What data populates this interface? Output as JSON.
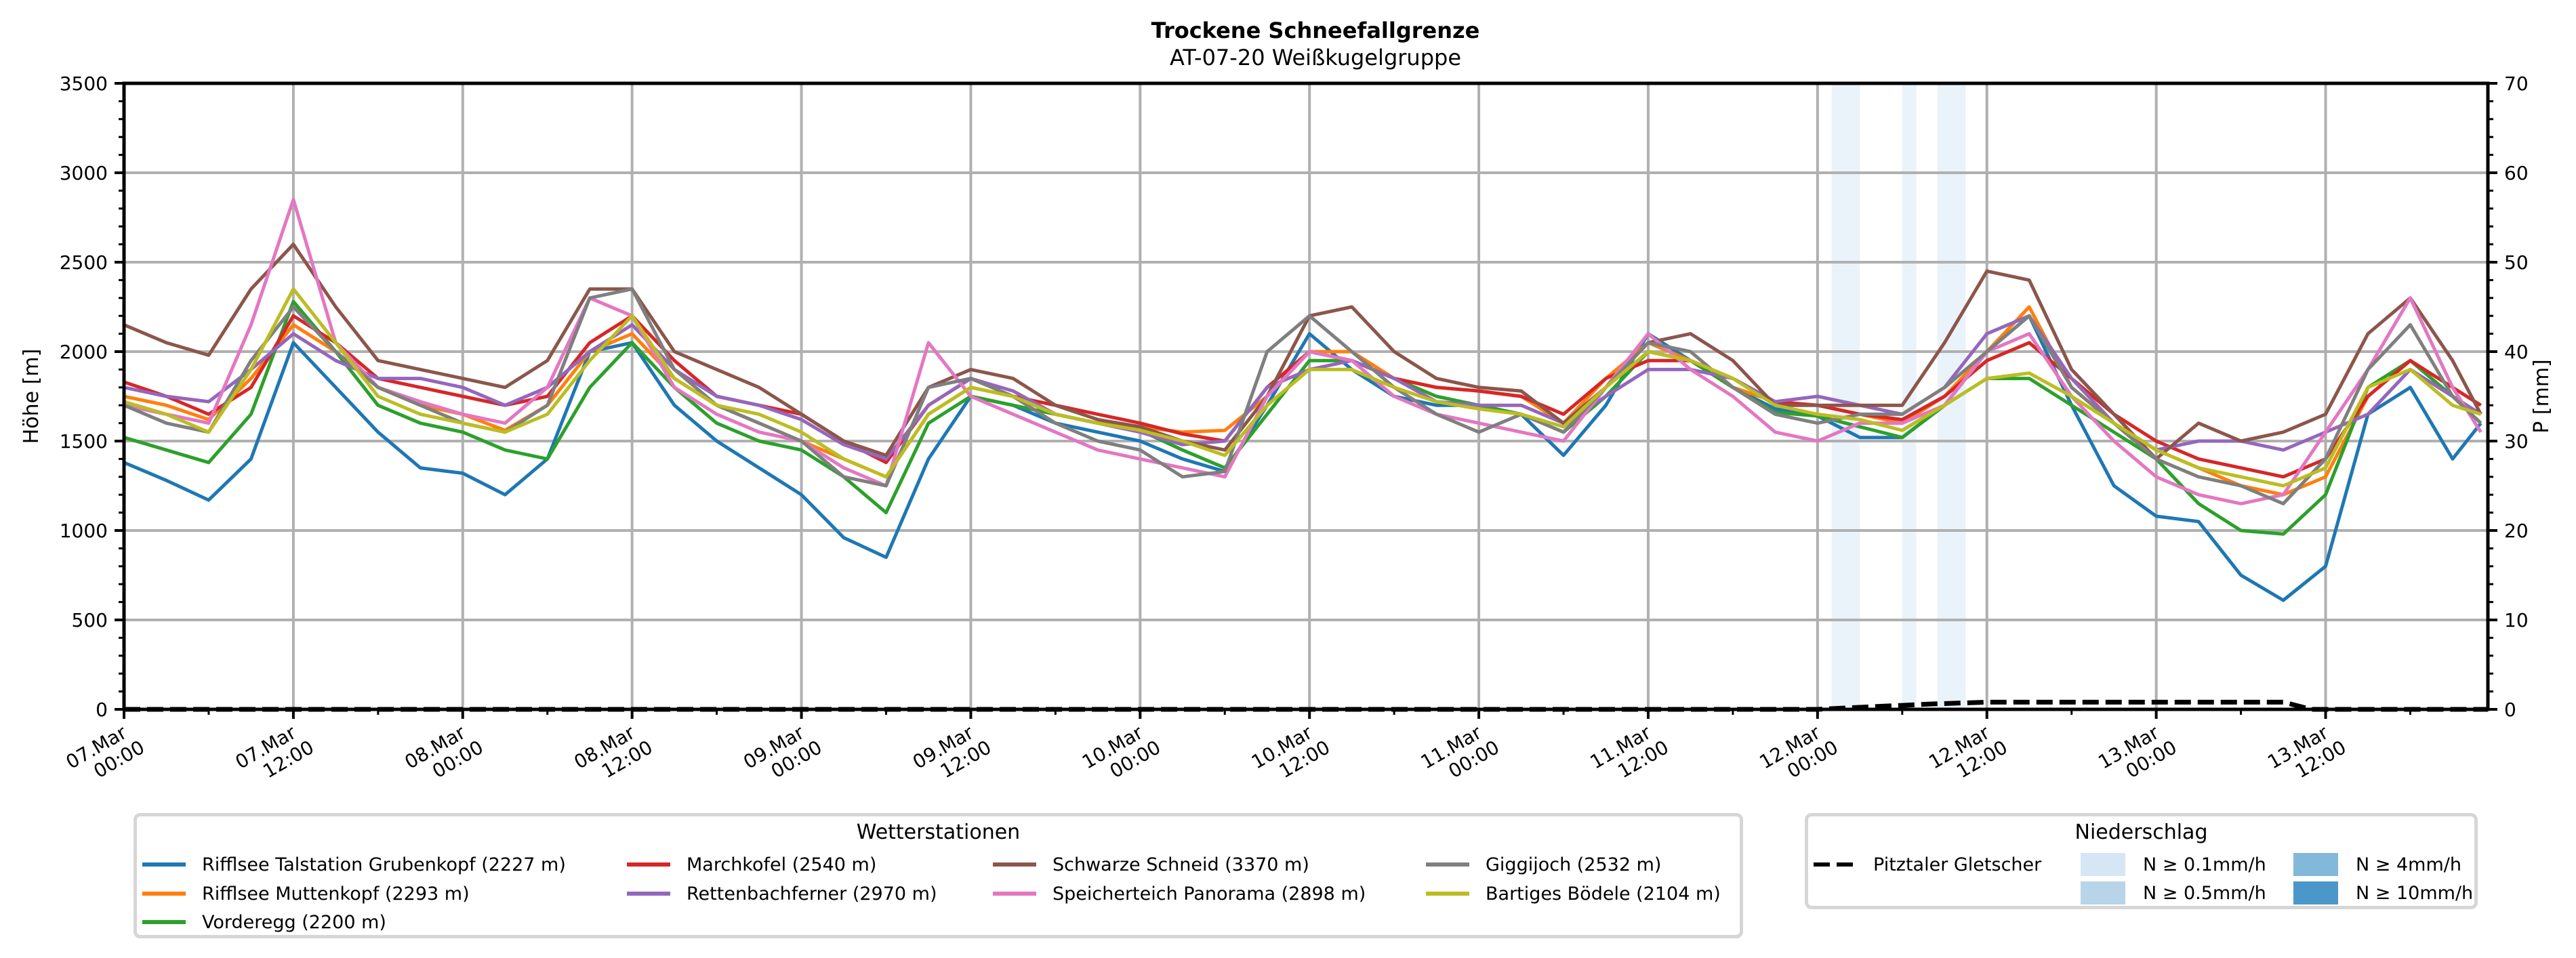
{
  "chart_data": {
    "type": "line",
    "title": "Trockene Schneefallgrenze",
    "subtitle": "AT-07-20 Weißkugelgruppe",
    "ylabel": "Höhe [m]",
    "ylabel_right": "P [mm]",
    "ylim": [
      0,
      3500
    ],
    "ylim_right": [
      0,
      70
    ],
    "yticks": [
      "0",
      "500",
      "1000",
      "1500",
      "2000",
      "2500",
      "3000",
      "3500"
    ],
    "yticks_right": [
      "0",
      "10",
      "20",
      "30",
      "40",
      "50",
      "60",
      "70"
    ],
    "x_unit": "hours since 07.Mar 00:00",
    "xlim": [
      0,
      167.5
    ],
    "xticks": [
      {
        "h": 0,
        "l1": "07.Mar",
        "l2": "00:00"
      },
      {
        "h": 12,
        "l1": "07.Mar",
        "l2": "12:00"
      },
      {
        "h": 24,
        "l1": "08.Mar",
        "l2": "00:00"
      },
      {
        "h": 36,
        "l1": "08.Mar",
        "l2": "12:00"
      },
      {
        "h": 48,
        "l1": "09.Mar",
        "l2": "00:00"
      },
      {
        "h": 60,
        "l1": "09.Mar",
        "l2": "12:00"
      },
      {
        "h": 72,
        "l1": "10.Mar",
        "l2": "00:00"
      },
      {
        "h": 84,
        "l1": "10.Mar",
        "l2": "12:00"
      },
      {
        "h": 96,
        "l1": "11.Mar",
        "l2": "00:00"
      },
      {
        "h": 108,
        "l1": "11.Mar",
        "l2": "12:00"
      },
      {
        "h": 120,
        "l1": "12.Mar",
        "l2": "00:00"
      },
      {
        "h": 132,
        "l1": "12.Mar",
        "l2": "12:00"
      },
      {
        "h": 144,
        "l1": "13.Mar",
        "l2": "00:00"
      },
      {
        "h": 156,
        "l1": "13.Mar",
        "l2": "12:00"
      }
    ],
    "grid": true,
    "x": [
      0,
      3,
      6,
      9,
      12,
      15,
      18,
      21,
      24,
      27,
      30,
      33,
      36,
      39,
      42,
      45,
      48,
      51,
      54,
      57,
      60,
      63,
      66,
      69,
      72,
      75,
      78,
      81,
      84,
      87,
      90,
      93,
      96,
      99,
      102,
      105,
      108,
      111,
      114,
      117,
      120,
      123,
      126,
      129,
      132,
      135,
      138,
      141,
      144,
      147,
      150,
      153,
      156,
      159,
      162,
      165,
      167
    ],
    "legend_title": "Wetterstationen",
    "series": [
      {
        "name": "Rifflsee Talstation Grubenkopf (2227 m)",
        "color": "#1f77b4",
        "values": [
          1380,
          1280,
          1170,
          1400,
          2050,
          1800,
          1550,
          1350,
          1320,
          1200,
          1400,
          2000,
          2050,
          1700,
          1500,
          1350,
          1200,
          960,
          850,
          1400,
          1750,
          1700,
          1600,
          1550,
          1500,
          1400,
          1330,
          1700,
          2100,
          1900,
          1750,
          1700,
          1700,
          1650,
          1420,
          1700,
          2100,
          1950,
          1800,
          1680,
          1640,
          1520,
          1520,
          1700,
          2000,
          2200,
          1700,
          1250,
          1080,
          1050,
          750,
          610,
          800,
          1650,
          1800,
          1400,
          1600
        ]
      },
      {
        "name": "Rifflsee Muttenkopf (2293 m)",
        "color": "#ff7f0e",
        "values": [
          1750,
          1700,
          1620,
          1850,
          2150,
          2000,
          1800,
          1700,
          1650,
          1560,
          1700,
          2000,
          2100,
          1850,
          1700,
          1600,
          1500,
          1400,
          1300,
          1650,
          1800,
          1750,
          1650,
          1600,
          1580,
          1550,
          1560,
          1750,
          2000,
          2000,
          1850,
          1800,
          1780,
          1750,
          1600,
          1850,
          2050,
          1950,
          1800,
          1720,
          1700,
          1650,
          1600,
          1750,
          2000,
          2250,
          1800,
          1600,
          1450,
          1350,
          1250,
          1200,
          1300,
          1750,
          1950,
          1800,
          1700
        ]
      },
      {
        "name": "Vorderegg (2200 m)",
        "color": "#2ca02c",
        "values": [
          1520,
          1450,
          1380,
          1650,
          2280,
          2000,
          1700,
          1600,
          1550,
          1450,
          1400,
          1800,
          2050,
          1800,
          1600,
          1500,
          1450,
          1300,
          1100,
          1600,
          1750,
          1700,
          1650,
          1600,
          1560,
          1450,
          1350,
          1650,
          1950,
          1950,
          1850,
          1750,
          1700,
          1650,
          1550,
          1750,
          2000,
          1950,
          1800,
          1660,
          1640,
          1580,
          1520,
          1700,
          1850,
          1850,
          1700,
          1550,
          1400,
          1150,
          1000,
          980,
          1200,
          1800,
          1950,
          1750,
          1650
        ]
      },
      {
        "name": "Marchkofel (2540 m)",
        "color": "#d62728",
        "values": [
          1830,
          1750,
          1650,
          1800,
          2200,
          2050,
          1850,
          1800,
          1750,
          1700,
          1750,
          2050,
          2200,
          1950,
          1750,
          1700,
          1650,
          1500,
          1380,
          1700,
          1850,
          1750,
          1700,
          1650,
          1600,
          1540,
          1500,
          1800,
          2000,
          1950,
          1850,
          1800,
          1780,
          1750,
          1650,
          1850,
          1950,
          1950,
          1850,
          1720,
          1700,
          1650,
          1620,
          1750,
          1950,
          2050,
          1850,
          1650,
          1500,
          1400,
          1350,
          1300,
          1400,
          1750,
          1950,
          1800,
          1700
        ]
      },
      {
        "name": "Rettenbachferner (2970 m)",
        "color": "#9467bd",
        "values": [
          1800,
          1750,
          1720,
          1900,
          2100,
          1950,
          1850,
          1850,
          1800,
          1700,
          1800,
          2000,
          2150,
          1900,
          1750,
          1700,
          1620,
          1480,
          1400,
          1700,
          1850,
          1780,
          1650,
          1600,
          1550,
          1480,
          1500,
          1800,
          1900,
          1950,
          1850,
          1720,
          1700,
          1700,
          1600,
          1750,
          1900,
          1900,
          1850,
          1720,
          1750,
          1700,
          1650,
          1800,
          2100,
          2200,
          1850,
          1600,
          1450,
          1500,
          1500,
          1450,
          1550,
          1650,
          1900,
          1750,
          1650
        ]
      },
      {
        "name": "Schwarze Schneid (3370 m)",
        "color": "#8c564b",
        "values": [
          2150,
          2050,
          1980,
          2350,
          2600,
          2250,
          1950,
          1900,
          1850,
          1800,
          1950,
          2350,
          2350,
          2000,
          1900,
          1800,
          1650,
          1500,
          1420,
          1800,
          1900,
          1850,
          1700,
          1620,
          1580,
          1500,
          1450,
          1750,
          2200,
          2250,
          2000,
          1850,
          1800,
          1780,
          1600,
          1800,
          2050,
          2100,
          1950,
          1700,
          1700,
          1700,
          1700,
          2050,
          2450,
          2400,
          1900,
          1650,
          1400,
          1600,
          1500,
          1550,
          1650,
          2100,
          2300,
          1950,
          1650
        ]
      },
      {
        "name": "Speicherteich Panorama (2898 m)",
        "color": "#e377c2",
        "values": [
          1700,
          1650,
          1600,
          2150,
          2850,
          2050,
          1800,
          1720,
          1650,
          1600,
          1800,
          2300,
          2200,
          1800,
          1650,
          1550,
          1500,
          1350,
          1250,
          2050,
          1750,
          1650,
          1550,
          1450,
          1400,
          1350,
          1300,
          1750,
          2000,
          1950,
          1750,
          1650,
          1600,
          1550,
          1500,
          1800,
          2100,
          1900,
          1750,
          1550,
          1500,
          1600,
          1600,
          1700,
          2000,
          2100,
          1750,
          1500,
          1300,
          1200,
          1150,
          1200,
          1550,
          1900,
          2300,
          1800,
          1550
        ]
      },
      {
        "name": "Giggijoch (2532 m)",
        "color": "#7f7f7f",
        "values": [
          1700,
          1600,
          1550,
          1950,
          2250,
          2000,
          1800,
          1700,
          1600,
          1550,
          1700,
          2300,
          2350,
          1900,
          1700,
          1600,
          1500,
          1300,
          1250,
          1800,
          1850,
          1750,
          1600,
          1500,
          1450,
          1300,
          1330,
          2000,
          2200,
          2000,
          1800,
          1650,
          1550,
          1650,
          1550,
          1800,
          2050,
          2000,
          1800,
          1650,
          1600,
          1650,
          1650,
          1800,
          2000,
          2200,
          1800,
          1600,
          1400,
          1300,
          1250,
          1150,
          1400,
          1900,
          2150,
          1750,
          1600
        ]
      },
      {
        "name": "Bartiges Bödele (2104 m)",
        "color": "#bcbd22",
        "values": [
          1720,
          1650,
          1550,
          1900,
          2350,
          2050,
          1750,
          1650,
          1600,
          1550,
          1650,
          1950,
          2200,
          1850,
          1700,
          1650,
          1550,
          1400,
          1300,
          1650,
          1800,
          1750,
          1650,
          1600,
          1560,
          1500,
          1420,
          1700,
          1900,
          1900,
          1800,
          1720,
          1680,
          1650,
          1580,
          1800,
          2000,
          1950,
          1850,
          1700,
          1650,
          1620,
          1560,
          1700,
          1850,
          1880,
          1750,
          1600,
          1450,
          1350,
          1300,
          1250,
          1350,
          1800,
          1900,
          1700,
          1650
        ]
      }
    ],
    "precip_legend_title": "Niederschlag",
    "precip_series": {
      "name": "Pitztaler Gletscher",
      "color": "#000000",
      "x": [
        0,
        120,
        124,
        128,
        132,
        144,
        153,
        155,
        167.5
      ],
      "values": [
        0,
        0,
        0.3,
        0.6,
        0.8,
        0.8,
        0.8,
        0,
        0
      ]
    },
    "precip_spans": [
      {
        "start": 121,
        "end": 123,
        "class": "N ≥ 0.1mm/h"
      },
      {
        "start": 126,
        "end": 127,
        "class": "N ≥ 0.1mm/h"
      },
      {
        "start": 128.5,
        "end": 130.5,
        "class": "N ≥ 0.1mm/h"
      }
    ],
    "precip_classes": [
      {
        "label": "N ≥ 0.1mm/h",
        "color": "#d6e6f4"
      },
      {
        "label": "N ≥ 0.5mm/h",
        "color": "#b8d4e8"
      },
      {
        "label": "N ≥ 4mm/h",
        "color": "#82b8d9"
      },
      {
        "label": "N ≥ 10mm/h",
        "color": "#4c97c9"
      }
    ],
    "span_color": "#eaf2fa"
  }
}
